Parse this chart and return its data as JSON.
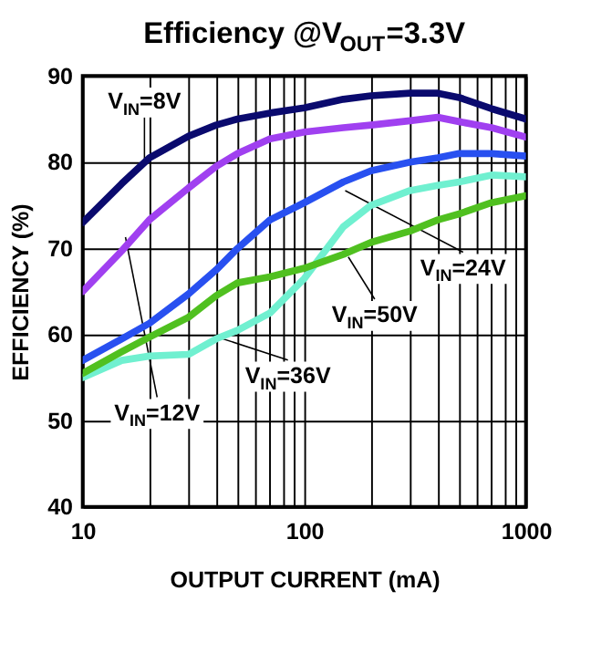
{
  "chart_data": {
    "type": "line",
    "title": "Efficiency @V$_{OUT}$=3.3V",
    "xlabel": "OUTPUT CURRENT (mA)",
    "ylabel": "EFFICIENCY (%)",
    "x": [
      10,
      15,
      20,
      30,
      40,
      50,
      70,
      100,
      150,
      200,
      300,
      400,
      500,
      700,
      1000
    ],
    "series": [
      {
        "color": "#0a0a6e",
        "values": [
          73,
          77.5,
          80.5,
          83,
          84.3,
          85,
          85.7,
          86.3,
          87.3,
          87.7,
          88,
          88,
          87.5,
          86.2,
          85
        ]
      },
      {
        "color": "#a040f0",
        "values": [
          65,
          69.7,
          73.3,
          77,
          79.5,
          81,
          82.7,
          83.5,
          84,
          84.3,
          84.8,
          85.2,
          84.7,
          84,
          82.9
        ]
      },
      {
        "color": "#2850f0",
        "values": [
          57,
          59.5,
          61.3,
          64.7,
          67.5,
          70,
          73.3,
          75.3,
          77.7,
          79,
          80,
          80.5,
          81,
          81,
          80.7
        ]
      },
      {
        "color": "#70f0d0",
        "values": [
          55,
          57,
          57.5,
          57.7,
          59.5,
          60.5,
          62.5,
          66.5,
          72.5,
          75,
          76.7,
          77.3,
          77.7,
          78.5,
          78.3
        ]
      },
      {
        "color": "#50c020",
        "values": [
          55.5,
          58,
          59.7,
          62,
          64.5,
          66,
          66.7,
          67.7,
          69.3,
          70.7,
          72,
          73.3,
          74,
          75.3,
          76.1
        ]
      }
    ],
    "annotations": [
      {
        "text": "V$_{IN}$=8V",
        "x": 19,
        "y": 80.3
      },
      {
        "text": "V$_{IN}$=12V",
        "x": 15.6,
        "y": 71.3
      },
      {
        "text": "V$_{IN}$=24V",
        "x": 153,
        "y": 76.7
      },
      {
        "text": "V$_{IN}$=50V",
        "x": 158,
        "y": 69
      },
      {
        "text": "V$_{IN}$=36V",
        "x": 40.6,
        "y": 59.7
      }
    ],
    "log": "x",
    "xlim": [
      10,
      1000
    ],
    "ylim": [
      40,
      90
    ],
    "xticks": [
      10,
      {
        "value": 20,
        "label": null
      },
      {
        "value": 30,
        "label": null
      },
      {
        "value": 40,
        "label": null
      },
      {
        "value": 50,
        "label": null
      },
      {
        "value": 60,
        "label": null
      },
      {
        "value": 70,
        "label": null
      },
      {
        "value": 80,
        "label": null
      },
      {
        "value": 90,
        "label": null
      },
      100,
      {
        "value": 200,
        "label": null
      },
      {
        "value": 300,
        "label": null
      },
      {
        "value": 400,
        "label": null
      },
      {
        "value": 500,
        "label": null
      },
      {
        "value": 600,
        "label": null
      },
      {
        "value": 700,
        "label": null
      },
      {
        "value": 800,
        "label": null
      },
      {
        "value": 900,
        "label": null
      },
      1000
    ],
    "yticks": [
      40,
      50,
      60,
      70,
      80,
      90
    ],
    "grid": true,
    "line_style": "solid",
    "marker": "none",
    "legend": false
  }
}
